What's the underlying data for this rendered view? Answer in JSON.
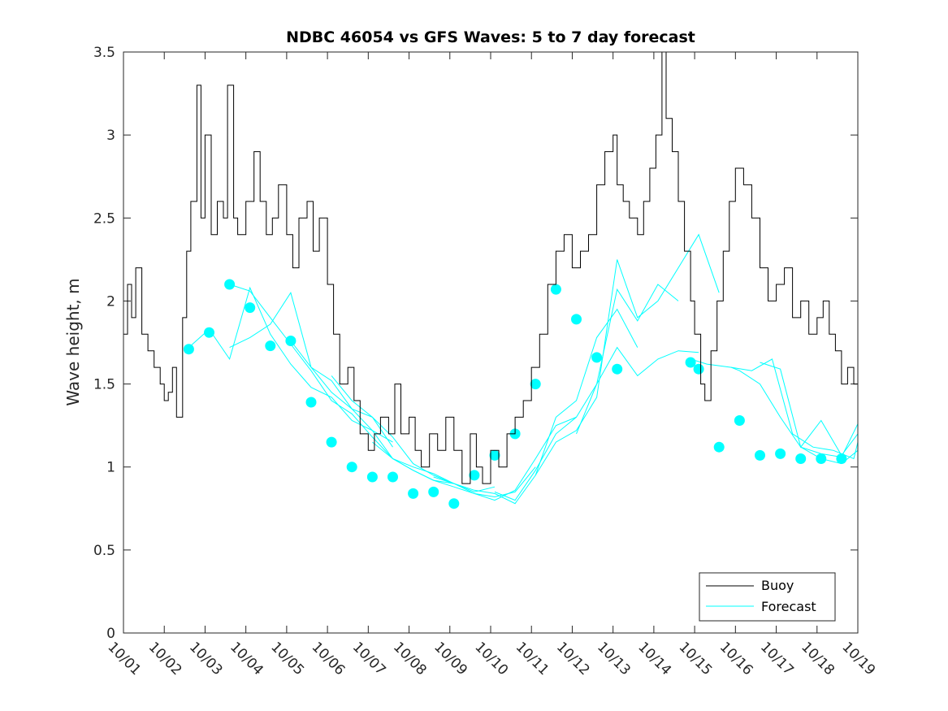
{
  "chart_data": {
    "type": "line",
    "title": "NDBC 46054 vs GFS Waves: 5 to 7 day forecast",
    "xlabel": "",
    "ylabel": "Wave height, m",
    "xlim": [
      0,
      18
    ],
    "ylim": [
      0,
      3.5
    ],
    "x_ticks": [
      0,
      1,
      2,
      3,
      4,
      5,
      6,
      7,
      8,
      9,
      10,
      11,
      12,
      13,
      14,
      15,
      16,
      17,
      18
    ],
    "x_tick_labels": [
      "10/01",
      "10/02",
      "10/03",
      "10/04",
      "10/05",
      "10/06",
      "10/07",
      "10/08",
      "10/09",
      "10/10",
      "10/11",
      "10/12",
      "10/13",
      "10/14",
      "10/15",
      "10/16",
      "10/17",
      "10/18",
      "10/19"
    ],
    "y_ticks": [
      0,
      0.5,
      1,
      1.5,
      2,
      2.5,
      3,
      3.5
    ],
    "y_tick_labels": [
      "0",
      "0.5",
      "1",
      "1.5",
      "2",
      "2.5",
      "3",
      "3.5"
    ],
    "grid": false,
    "legend": {
      "location": "bottom-right",
      "entries": [
        "Buoy",
        "Forecast"
      ]
    },
    "colors": {
      "buoy": "#000000",
      "forecast": "#00ffff",
      "axis": "#262626"
    },
    "series": [
      {
        "name": "Buoy",
        "x": [
          0,
          0.1,
          0.2,
          0.3,
          0.45,
          0.6,
          0.75,
          0.9,
          1.0,
          1.1,
          1.2,
          1.3,
          1.45,
          1.55,
          1.65,
          1.8,
          1.9,
          2.0,
          2.15,
          2.3,
          2.45,
          2.55,
          2.7,
          2.8,
          3.0,
          3.2,
          3.35,
          3.5,
          3.65,
          3.8,
          4.0,
          4.15,
          4.3,
          4.5,
          4.65,
          4.8,
          5.0,
          5.15,
          5.3,
          5.5,
          5.65,
          5.8,
          6.0,
          6.15,
          6.3,
          6.5,
          6.65,
          6.8,
          7.0,
          7.15,
          7.3,
          7.5,
          7.7,
          7.9,
          8.1,
          8.3,
          8.5,
          8.65,
          8.8,
          9.0,
          9.2,
          9.4,
          9.6,
          9.8,
          10.0,
          10.2,
          10.4,
          10.6,
          10.8,
          11.0,
          11.2,
          11.4,
          11.6,
          11.8,
          12.0,
          12.1,
          12.25,
          12.4,
          12.6,
          12.75,
          12.9,
          13.05,
          13.2,
          13.3,
          13.45,
          13.6,
          13.75,
          13.9,
          14.0,
          14.15,
          14.25,
          14.4,
          14.55,
          14.7,
          14.85,
          15.0,
          15.2,
          15.4,
          15.6,
          15.8,
          16.0,
          16.2,
          16.4,
          16.6,
          16.8,
          17.0,
          17.15,
          17.3,
          17.45,
          17.6,
          17.75,
          17.9,
          18.0
        ],
        "y": [
          1.8,
          2.1,
          1.9,
          2.2,
          1.8,
          1.7,
          1.6,
          1.5,
          1.4,
          1.45,
          1.6,
          1.3,
          1.9,
          2.3,
          2.6,
          3.3,
          2.5,
          3.0,
          2.4,
          2.6,
          2.5,
          3.3,
          2.5,
          2.4,
          2.6,
          2.9,
          2.6,
          2.4,
          2.5,
          2.7,
          2.4,
          2.2,
          2.5,
          2.6,
          2.3,
          2.5,
          2.1,
          1.8,
          1.5,
          1.6,
          1.4,
          1.2,
          1.1,
          1.2,
          1.3,
          1.2,
          1.5,
          1.2,
          1.3,
          1.1,
          1.0,
          1.2,
          1.1,
          1.3,
          1.1,
          0.9,
          1.2,
          1.0,
          0.9,
          1.1,
          1.0,
          1.2,
          1.3,
          1.4,
          1.6,
          1.8,
          2.1,
          2.3,
          2.4,
          2.2,
          2.3,
          2.4,
          2.7,
          2.9,
          3.0,
          2.7,
          2.6,
          2.5,
          2.4,
          2.6,
          2.8,
          3.0,
          3.5,
          3.1,
          2.9,
          2.6,
          2.3,
          2.0,
          1.8,
          1.5,
          1.4,
          1.7,
          2.0,
          2.3,
          2.6,
          2.8,
          2.7,
          2.5,
          2.2,
          2.0,
          2.1,
          2.2,
          1.9,
          2.0,
          1.8,
          1.9,
          2.0,
          1.8,
          1.7,
          1.5,
          1.6,
          1.5,
          1.4
        ]
      },
      {
        "name": "Forecast",
        "segments": [
          {
            "x": [
              1.6,
              2.1,
              2.6,
              3.1,
              3.6,
              4.1,
              4.6,
              5.1,
              5.6,
              6.1,
              6.6
            ],
            "y": [
              1.72,
              1.83,
              1.65,
              2.08,
              1.8,
              1.62,
              1.48,
              1.42,
              1.28,
              1.22,
              1.15
            ]
          },
          {
            "x": [
              2.6,
              3.1,
              3.6,
              4.1,
              4.6,
              5.1,
              5.6,
              6.1,
              6.6
            ],
            "y": [
              1.72,
              1.78,
              1.86,
              2.05,
              1.6,
              1.52,
              1.35,
              1.3,
              1.12
            ]
          },
          {
            "x": [
              2.6,
              3.1,
              3.6,
              4.1,
              4.6,
              5.1,
              5.6,
              6.1,
              6.6,
              7.1,
              7.6,
              8.1
            ],
            "y": [
              2.1,
              2.06,
              1.9,
              1.74,
              1.58,
              1.4,
              1.32,
              1.18,
              1.05,
              0.98,
              0.92,
              0.9
            ]
          },
          {
            "x": [
              4.1,
              4.6,
              5.1,
              5.6,
              6.1,
              6.6,
              7.1,
              7.6,
              8.1,
              8.6,
              9.1
            ],
            "y": [
              1.76,
              1.6,
              1.45,
              1.35,
              1.22,
              1.05,
              1.0,
              0.96,
              0.9,
              0.85,
              0.88
            ]
          },
          {
            "x": [
              5.1,
              5.6,
              6.1,
              6.6,
              7.1,
              7.6,
              8.1,
              8.6,
              9.1,
              9.6,
              10.1
            ],
            "y": [
              1.55,
              1.4,
              1.3,
              1.18,
              1.02,
              0.95,
              0.9,
              0.84,
              0.82,
              0.85,
              1.0
            ]
          },
          {
            "x": [
              6.1,
              6.6,
              7.1,
              7.6,
              8.1,
              8.6,
              9.1,
              9.6,
              10.1,
              10.6,
              11.1
            ],
            "y": [
              1.15,
              1.05,
              0.98,
              0.92,
              0.88,
              0.84,
              0.8,
              0.86,
              1.05,
              1.25,
              1.3
            ]
          },
          {
            "x": [
              7.6,
              8.1,
              8.6,
              9.1,
              9.6,
              10.1,
              10.6,
              11.1,
              11.6,
              12.1,
              12.6
            ],
            "y": [
              0.94,
              0.9,
              0.86,
              0.84,
              0.78,
              0.95,
              1.3,
              1.4,
              1.78,
              1.95,
              1.72
            ]
          },
          {
            "x": [
              9.1,
              9.6,
              10.1,
              10.6,
              11.1,
              11.6,
              12.1,
              12.6,
              13.1,
              13.6,
              14.1
            ],
            "y": [
              0.85,
              0.8,
              0.98,
              1.2,
              1.3,
              1.5,
              1.72,
              1.55,
              1.65,
              1.7,
              1.69
            ]
          },
          {
            "x": [
              10.1,
              10.6,
              11.1,
              11.6,
              12.1,
              12.6,
              13.1,
              13.6,
              14.1,
              14.6
            ],
            "y": [
              0.95,
              1.15,
              1.22,
              1.42,
              2.25,
              1.9,
              2.0,
              2.2,
              2.4,
              2.05
            ]
          },
          {
            "x": [
              11.1,
              11.6,
              12.1,
              12.6,
              13.1,
              13.6
            ],
            "y": [
              1.2,
              1.5,
              2.07,
              1.88,
              2.1,
              2.0
            ]
          },
          {
            "x": [
              13.9,
              14.3,
              14.9,
              15.1,
              15.6,
              16.1,
              16.6,
              17.1,
              17.6,
              18.0
            ],
            "y": [
              1.65,
              1.62,
              1.6,
              1.58,
              1.5,
              1.3,
              1.12,
              1.08,
              1.06,
              1.26
            ]
          },
          {
            "x": [
              14.9,
              15.4,
              15.9,
              16.4,
              16.9,
              17.4,
              17.9,
              18.0
            ],
            "y": [
              1.6,
              1.58,
              1.65,
              1.2,
              1.12,
              1.1,
              1.05,
              1.15
            ]
          },
          {
            "x": [
              15.6,
              16.1,
              16.6,
              17.1,
              17.6,
              18.0
            ],
            "y": [
              1.63,
              1.59,
              1.12,
              1.28,
              1.07,
              1.2
            ]
          },
          {
            "x": [
              16.6,
              17.1,
              17.6,
              18.0
            ],
            "y": [
              1.12,
              1.05,
              1.02,
              1.1
            ]
          }
        ],
        "markers": {
          "x": [
            1.6,
            2.1,
            2.6,
            3.1,
            3.6,
            4.1,
            4.6,
            5.1,
            5.6,
            6.1,
            6.6,
            7.1,
            7.6,
            8.1,
            8.6,
            9.1,
            9.6,
            10.1,
            10.6,
            11.1,
            11.6,
            12.1,
            13.9,
            14.1,
            14.6,
            15.1,
            15.6,
            16.1,
            16.6,
            17.1,
            17.6
          ],
          "y": [
            1.71,
            1.81,
            2.1,
            1.96,
            1.73,
            1.76,
            1.39,
            1.15,
            1.0,
            0.94,
            0.94,
            0.84,
            0.85,
            0.78,
            0.95,
            1.07,
            1.2,
            1.5,
            2.07,
            1.89,
            1.66,
            1.59,
            1.63,
            1.59,
            1.12,
            1.28,
            1.07,
            1.08,
            1.05,
            1.05,
            1.05
          ]
        }
      }
    ]
  }
}
